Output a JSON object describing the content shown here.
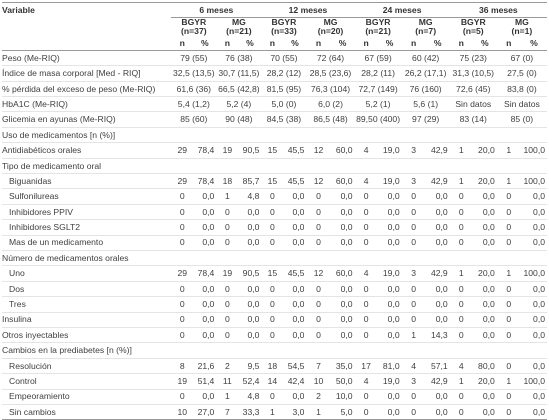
{
  "table": {
    "variable_header": "Variable",
    "periods": [
      "6 meses",
      "12 meses",
      "24 meses",
      "36 meses"
    ],
    "groups": [
      [
        "BGYR",
        "(n=37)"
      ],
      [
        "MG",
        "(n=21)"
      ],
      [
        "BGYR",
        "(n=33)"
      ],
      [
        "MG",
        "(n=20)"
      ],
      [
        "BGYR",
        "(n=21)"
      ],
      [
        "MG",
        "(n=7)"
      ],
      [
        "BGYR",
        "(n=5)"
      ],
      [
        "MG",
        "(n=1)"
      ]
    ],
    "col_n": "n",
    "col_pct": "%",
    "rows": [
      {
        "label": "Peso (Me-RIQ)",
        "indent": false,
        "spans": [
          "79 (55)",
          "76 (38)",
          "70 (55)",
          "72 (64)",
          "67 (59)",
          "60 (42)",
          "75 (23)",
          "67 (0)"
        ]
      },
      {
        "label": "Índice de masa corporal [Med - RIQ]",
        "indent": false,
        "spans": [
          "32,5 (13,5)",
          "30,7 (11,5)",
          "28,2 (12)",
          "28,5 (23,6)",
          "28,2 (11)",
          "26,2 (17,1)",
          "31,3 (10,5)",
          "27,5 (0)"
        ]
      },
      {
        "label": "% pérdida del exceso de peso (Me-RIQ)",
        "indent": false,
        "spans": [
          "61,6 (36)",
          "66,5 (42,8)",
          "81,5 (95)",
          "76,3 (104)",
          "72,7 (149)",
          "76 (160)",
          "72,6 (45)",
          "83,8 (0)"
        ]
      },
      {
        "label": "HbA1C (Me-RIQ)",
        "indent": false,
        "spans": [
          "5,4 (1,2)",
          "5,2 (4)",
          "5,0 (0)",
          "6,0 (2)",
          "5,2 (1)",
          "5,6 (1)",
          "Sin datos",
          "Sin datos"
        ]
      },
      {
        "label": "Glicemia en ayunas (Me-RIQ)",
        "indent": false,
        "spans": [
          "85 (60)",
          "90 (48)",
          "84,5 (38)",
          "86,5 (48)",
          "89,50 (400)",
          "97 (29)",
          "83 (14)",
          "85 (0)"
        ]
      },
      {
        "label": "Uso de medicamentos [n (%)]",
        "indent": false,
        "cells": []
      },
      {
        "label": "Antidiabéticos orales",
        "indent": false,
        "cells": [
          "29",
          "78,4",
          "19",
          "90,5",
          "15",
          "45,5",
          "12",
          "60,0",
          "4",
          "19,0",
          "3",
          "42,9",
          "1",
          "20,0",
          "1",
          "100,0"
        ]
      },
      {
        "label": "Tipo de medicamento oral",
        "indent": false,
        "cells": []
      },
      {
        "label": "Biguanidas",
        "indent": true,
        "cells": [
          "29",
          "78,4",
          "18",
          "85,7",
          "15",
          "45,5",
          "12",
          "60,0",
          "4",
          "19,0",
          "3",
          "42,9",
          "1",
          "20,0",
          "1",
          "100,0"
        ]
      },
      {
        "label": "Sulfonilureas",
        "indent": true,
        "cells": [
          "0",
          "0,0",
          "1",
          "4,8",
          "0",
          "0,0",
          "0",
          "0,0",
          "0",
          "0,0",
          "0",
          "0,0",
          "0",
          "0,0",
          "0",
          "0,0"
        ]
      },
      {
        "label": "Inhibidores PPIV",
        "indent": true,
        "cells": [
          "0",
          "0,0",
          "0",
          "0,0",
          "0",
          "0,0",
          "0",
          "0,0",
          "0",
          "0,0",
          "0",
          "0,0",
          "0",
          "0,0",
          "0",
          "0,0"
        ]
      },
      {
        "label": "Inhibidores SGLT2",
        "indent": true,
        "cells": [
          "0",
          "0,0",
          "0",
          "0,0",
          "0",
          "0,0",
          "0",
          "0,0",
          "0",
          "0,0",
          "0",
          "0,0",
          "0",
          "0,0",
          "0",
          "0,0"
        ]
      },
      {
        "label": "Mas de un medicamento",
        "indent": true,
        "cells": [
          "0",
          "0,0",
          "0",
          "0,0",
          "0",
          "0,0",
          "0",
          "0,0",
          "0",
          "0,0",
          "0",
          "0,0",
          "0",
          "0,0",
          "0",
          "0,0"
        ]
      },
      {
        "label": "Número de medicamentos orales",
        "indent": false,
        "cells": []
      },
      {
        "label": "Uno",
        "indent": true,
        "cells": [
          "29",
          "78,4",
          "19",
          "90,5",
          "15",
          "45,5",
          "12",
          "60,0",
          "4",
          "19,0",
          "3",
          "42,9",
          "1",
          "20,0",
          "1",
          "100,0"
        ]
      },
      {
        "label": "Dos",
        "indent": true,
        "cells": [
          "0",
          "0,0",
          "0",
          "0,0",
          "0",
          "0,0",
          "0",
          "0,0",
          "0",
          "0,0",
          "0",
          "0,0",
          "0",
          "0,0",
          "0",
          "0,0"
        ]
      },
      {
        "label": "Tres",
        "indent": true,
        "cells": [
          "0",
          "0,0",
          "0",
          "0,0",
          "0",
          "0,0",
          "0",
          "0,0",
          "0",
          "0,0",
          "0",
          "0,0",
          "0",
          "0,0",
          "0",
          "0,0"
        ]
      },
      {
        "label": "Insulina",
        "indent": false,
        "cells": [
          "0",
          "0,0",
          "0",
          "0,0",
          "0",
          "0,0",
          "0",
          "0,0",
          "0",
          "0,0",
          "0",
          "0,0",
          "0",
          "0,0",
          "0",
          "0,0"
        ]
      },
      {
        "label": "Otros inyectables",
        "indent": false,
        "cells": [
          "0",
          "0,0",
          "0",
          "0,0",
          "0",
          "0,0",
          "0",
          "0,0",
          "0",
          "0,0",
          "1",
          "14,3",
          "0",
          "0,0",
          "0",
          "0,0"
        ]
      },
      {
        "label": "Cambios en la prediabetes [n (%)]",
        "indent": false,
        "cells": []
      },
      {
        "label": "Resolución",
        "indent": true,
        "cells": [
          "8",
          "21,6",
          "2",
          "9,5",
          "18",
          "54,5",
          "7",
          "35,0",
          "17",
          "81,0",
          "4",
          "57,1",
          "4",
          "80,0",
          "0",
          "0,0"
        ]
      },
      {
        "label": "Control",
        "indent": true,
        "cells": [
          "19",
          "51,4",
          "11",
          "52,4",
          "14",
          "42,4",
          "10",
          "50,0",
          "4",
          "19,0",
          "3",
          "42,9",
          "1",
          "20,0",
          "1",
          "100,0"
        ]
      },
      {
        "label": "Empeoramiento",
        "indent": true,
        "cells": [
          "0",
          "0,0",
          "1",
          "4,8",
          "0",
          "0,0",
          "2",
          "10,0",
          "0",
          "0,0",
          "0",
          "0,0",
          "0",
          "0,0",
          "0",
          "0,0"
        ]
      },
      {
        "label": "Sin cambios",
        "indent": true,
        "cells": [
          "10",
          "27,0",
          "7",
          "33,3",
          "1",
          "3,0",
          "1",
          "5,0",
          "0",
          "0,0",
          "0",
          "0,0",
          "0",
          "0,0",
          "0",
          "0,0"
        ]
      }
    ]
  }
}
